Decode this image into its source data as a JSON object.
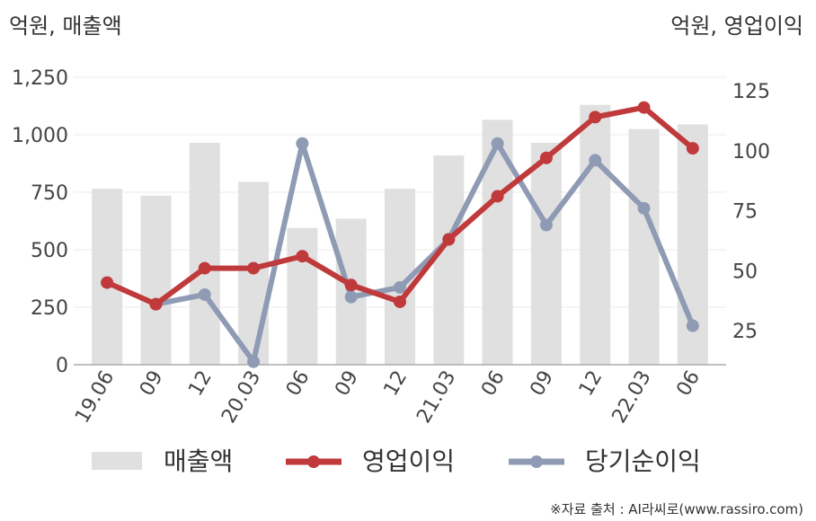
{
  "chart_data": {
    "type": "bar",
    "left_axis_label": "억원, 매출액",
    "right_axis_label": "억원, 영업이익",
    "categories": [
      "19.06",
      "09",
      "12",
      "20.03",
      "06",
      "09",
      "12",
      "21.03",
      "06",
      "09",
      "12",
      "22.03",
      "06"
    ],
    "y_left": {
      "ticks": [
        0,
        250,
        500,
        750,
        1000,
        1250
      ],
      "tick_labels": [
        "0",
        "250",
        "500",
        "750",
        "1,000",
        "1,250"
      ],
      "range": [
        0,
        1250
      ]
    },
    "y_right": {
      "ticks": [
        25,
        50,
        75,
        100,
        125
      ],
      "tick_labels": [
        "25",
        "50",
        "75",
        "100",
        "125"
      ],
      "range": [
        10,
        131
      ]
    },
    "grid": true,
    "legend_position": "bottom",
    "series": [
      {
        "name": "매출액",
        "type": "bar",
        "axis": "left",
        "color": "#e0e0e0",
        "values": [
          765,
          735,
          965,
          795,
          595,
          635,
          765,
          910,
          1065,
          965,
          1130,
          1025,
          1045
        ]
      },
      {
        "name": "영업이익",
        "type": "line",
        "axis": "right",
        "color": "#c0393b",
        "values": [
          45,
          36,
          51,
          51,
          56,
          44,
          37,
          63,
          81,
          97,
          114,
          118,
          101
        ]
      },
      {
        "name": "당기순이익",
        "type": "line",
        "axis": "right",
        "color": "#8f9bb5",
        "values": null
      }
    ],
    "net_income_values": [
      null,
      36,
      40,
      12,
      103,
      39,
      43,
      63,
      103,
      69,
      96,
      76,
      27
    ]
  },
  "source_text": "※자료 출처 : AI라씨로(www.rassiro.com)"
}
